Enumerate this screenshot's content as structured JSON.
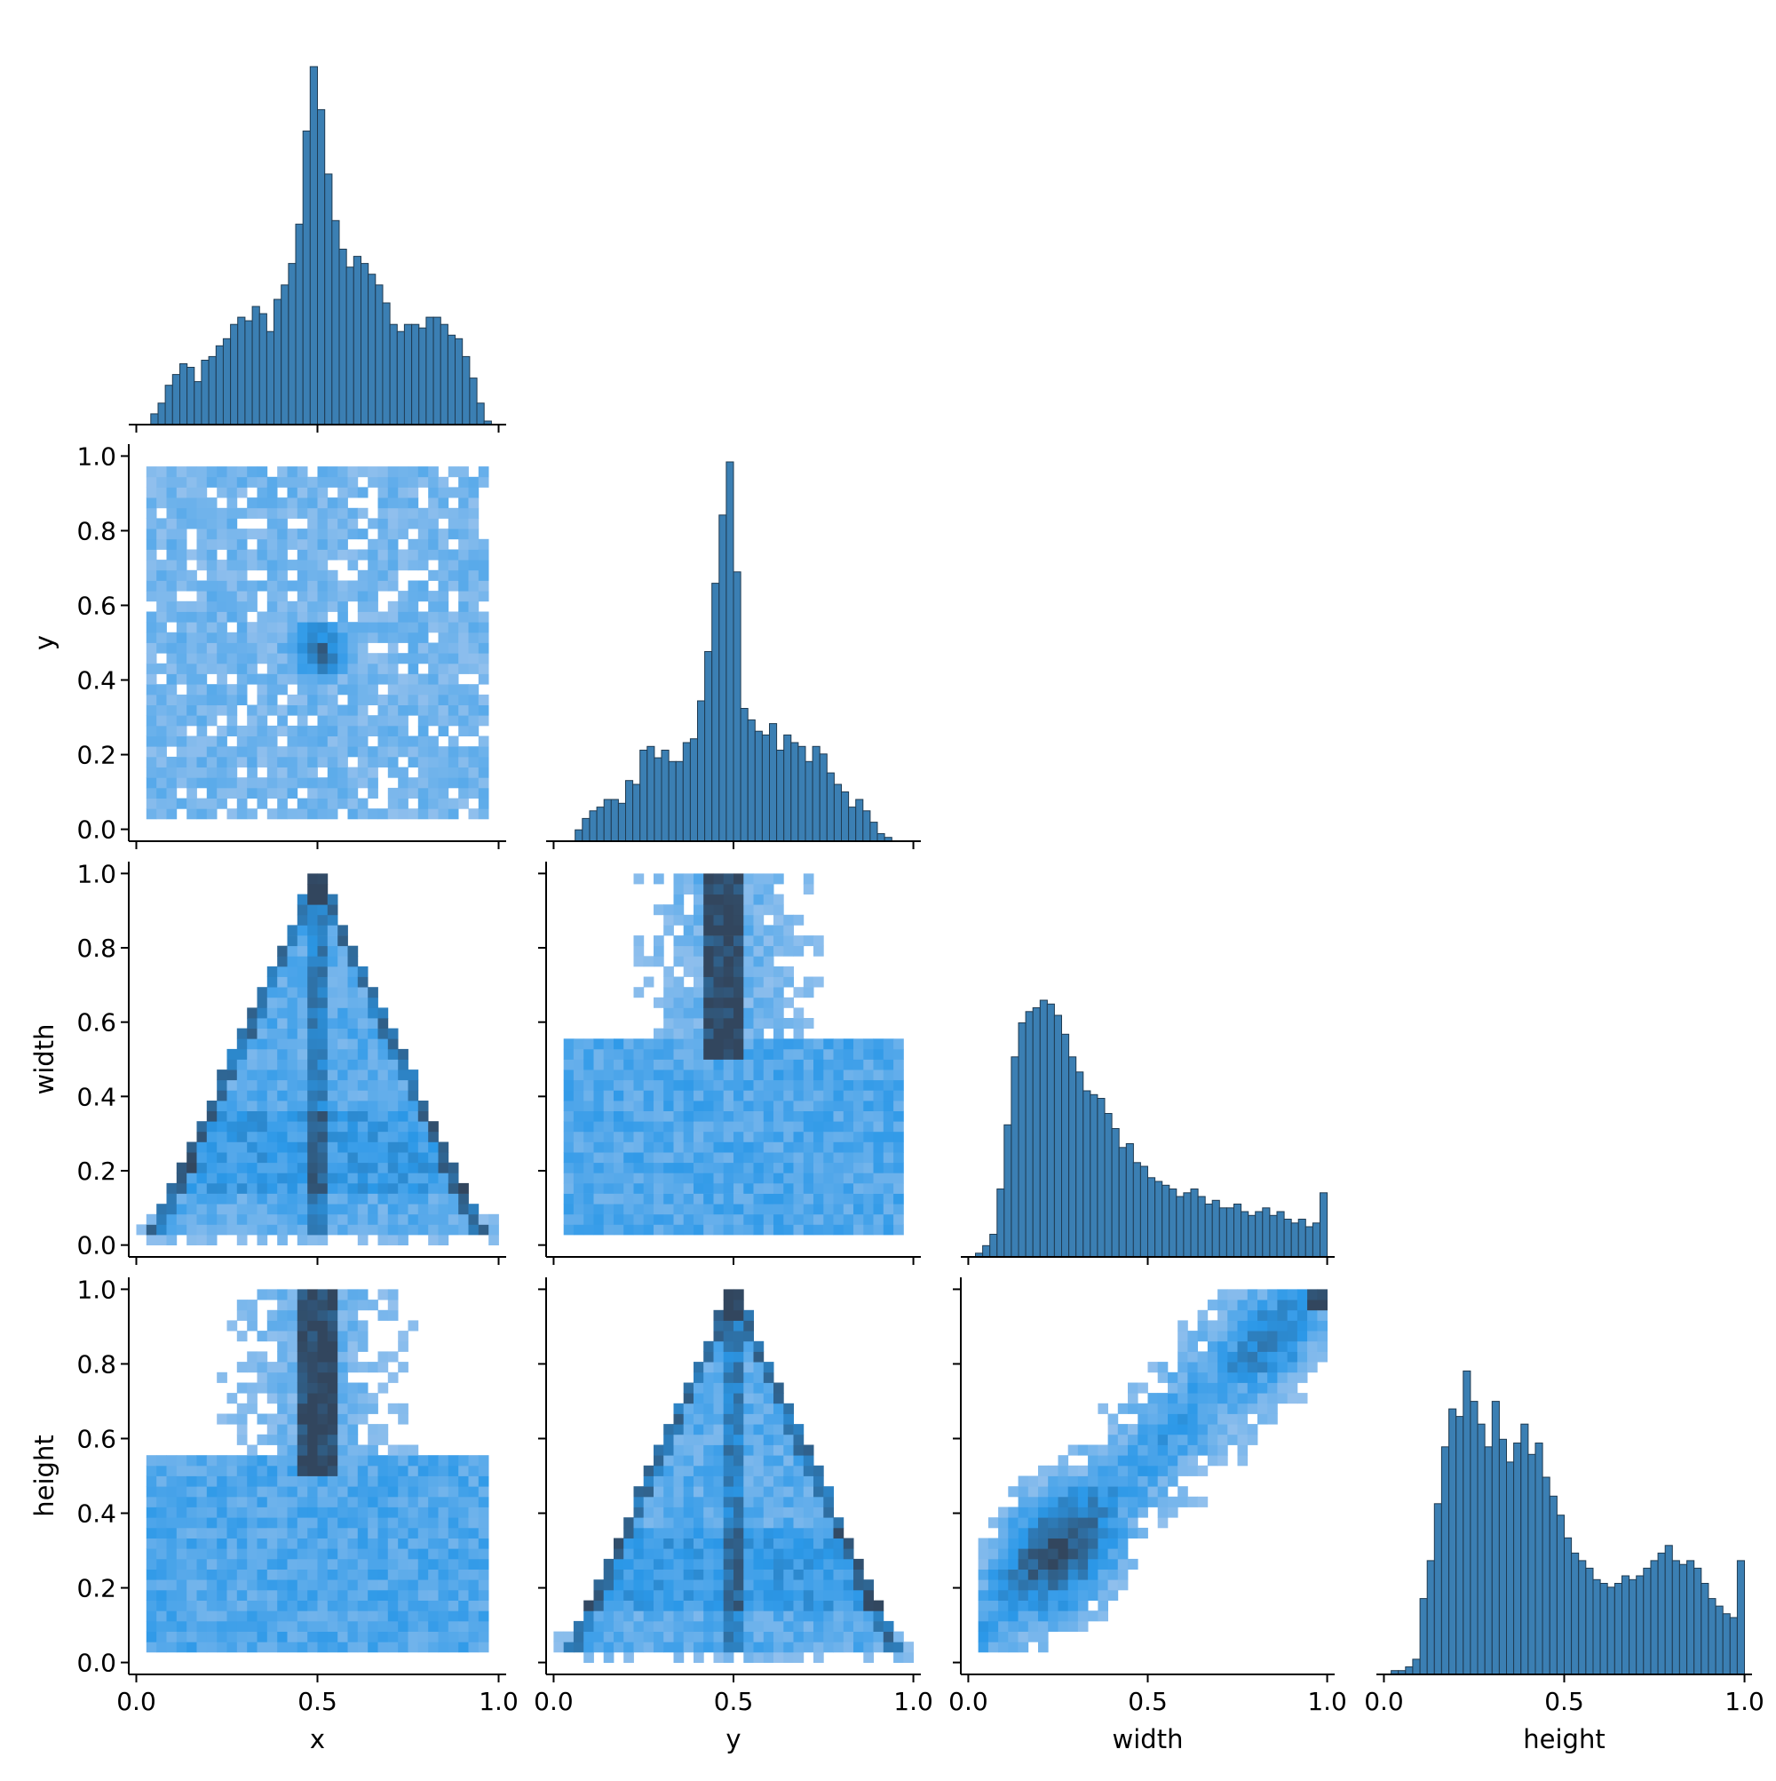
{
  "chart_data": {
    "type": "pairplot",
    "variables": [
      "x",
      "y",
      "width",
      "height"
    ],
    "axis_range": [
      0.0,
      1.0
    ],
    "ticks": [
      0.0,
      0.2,
      0.4,
      0.6,
      0.8,
      1.0
    ],
    "x_tick_labels": [
      "0.0",
      "0.5",
      "1.0"
    ],
    "y_tick_labels": [
      "0.0",
      "0.2",
      "0.4",
      "0.6",
      "0.8",
      "1.0"
    ],
    "corner": true,
    "grid": false,
    "legend": "none",
    "colors": {
      "hist_fill": "#3b7fb3",
      "hist_edge": "#1f3b52",
      "heat_low": "#a9c9ee",
      "heat_mid": "#2b98e8",
      "heat_high": "#32465e"
    },
    "diagonal_histograms": {
      "bins": 50,
      "bin_range": [
        0.0,
        1.0
      ],
      "x": [
        0,
        0,
        0.03,
        0.06,
        0.11,
        0.14,
        0.17,
        0.16,
        0.12,
        0.18,
        0.19,
        0.22,
        0.24,
        0.28,
        0.3,
        0.29,
        0.33,
        0.31,
        0.26,
        0.35,
        0.39,
        0.45,
        0.56,
        0.82,
        1.0,
        0.88,
        0.7,
        0.57,
        0.49,
        0.44,
        0.47,
        0.45,
        0.42,
        0.39,
        0.34,
        0.28,
        0.26,
        0.28,
        0.28,
        0.27,
        0.3,
        0.3,
        0.28,
        0.25,
        0.24,
        0.19,
        0.13,
        0.06,
        0.01,
        0
      ],
      "y": [
        0,
        0,
        0,
        0.03,
        0.06,
        0.08,
        0.09,
        0.11,
        0.11,
        0.1,
        0.16,
        0.15,
        0.24,
        0.25,
        0.22,
        0.24,
        0.21,
        0.21,
        0.26,
        0.27,
        0.37,
        0.5,
        0.68,
        0.86,
        1.0,
        0.71,
        0.35,
        0.32,
        0.29,
        0.28,
        0.31,
        0.24,
        0.28,
        0.26,
        0.25,
        0.21,
        0.25,
        0.23,
        0.18,
        0.15,
        0.13,
        0.09,
        0.11,
        0.08,
        0.05,
        0.02,
        0.01,
        0,
        0,
        0
      ],
      "width": [
        0,
        0.01,
        0.03,
        0.06,
        0.18,
        0.35,
        0.53,
        0.62,
        0.65,
        0.66,
        0.68,
        0.67,
        0.64,
        0.59,
        0.53,
        0.49,
        0.44,
        0.43,
        0.42,
        0.38,
        0.34,
        0.29,
        0.3,
        0.25,
        0.24,
        0.21,
        0.2,
        0.19,
        0.18,
        0.16,
        0.17,
        0.18,
        0.16,
        0.14,
        0.15,
        0.13,
        0.13,
        0.14,
        0.12,
        0.11,
        0.12,
        0.13,
        0.11,
        0.12,
        0.1,
        0.09,
        0.1,
        0.08,
        0.09,
        0.17
      ],
      "height": [
        0,
        0.01,
        0.01,
        0.02,
        0.04,
        0.2,
        0.3,
        0.45,
        0.6,
        0.7,
        0.68,
        0.8,
        0.72,
        0.66,
        0.6,
        0.72,
        0.62,
        0.56,
        0.61,
        0.66,
        0.58,
        0.61,
        0.52,
        0.47,
        0.42,
        0.36,
        0.32,
        0.3,
        0.28,
        0.25,
        0.24,
        0.23,
        0.24,
        0.26,
        0.25,
        0.26,
        0.28,
        0.3,
        0.32,
        0.34,
        0.3,
        0.29,
        0.3,
        0.28,
        0.24,
        0.2,
        0.18,
        0.16,
        0.15,
        0.3
      ]
    },
    "bivariate_histograms": [
      {
        "x": "x",
        "y": "y",
        "pattern": "center-blob",
        "hot_spot": [
          0.5,
          0.48
        ]
      },
      {
        "x": "x",
        "y": "width",
        "pattern": "triangle",
        "apex": [
          0.5,
          1.0
        ],
        "base": [
          0.05,
          0.95
        ]
      },
      {
        "x": "y",
        "y": "width",
        "pattern": "vertical-column",
        "column_center": 0.48
      },
      {
        "x": "x",
        "y": "height",
        "pattern": "vertical-column",
        "column_center": 0.5
      },
      {
        "x": "y",
        "y": "height",
        "pattern": "triangle",
        "apex": [
          0.5,
          1.0
        ],
        "base": [
          0.05,
          0.95
        ]
      },
      {
        "x": "width",
        "y": "height",
        "pattern": "diagonal-correlation",
        "dense_region": [
          0.2,
          0.3
        ]
      }
    ]
  }
}
